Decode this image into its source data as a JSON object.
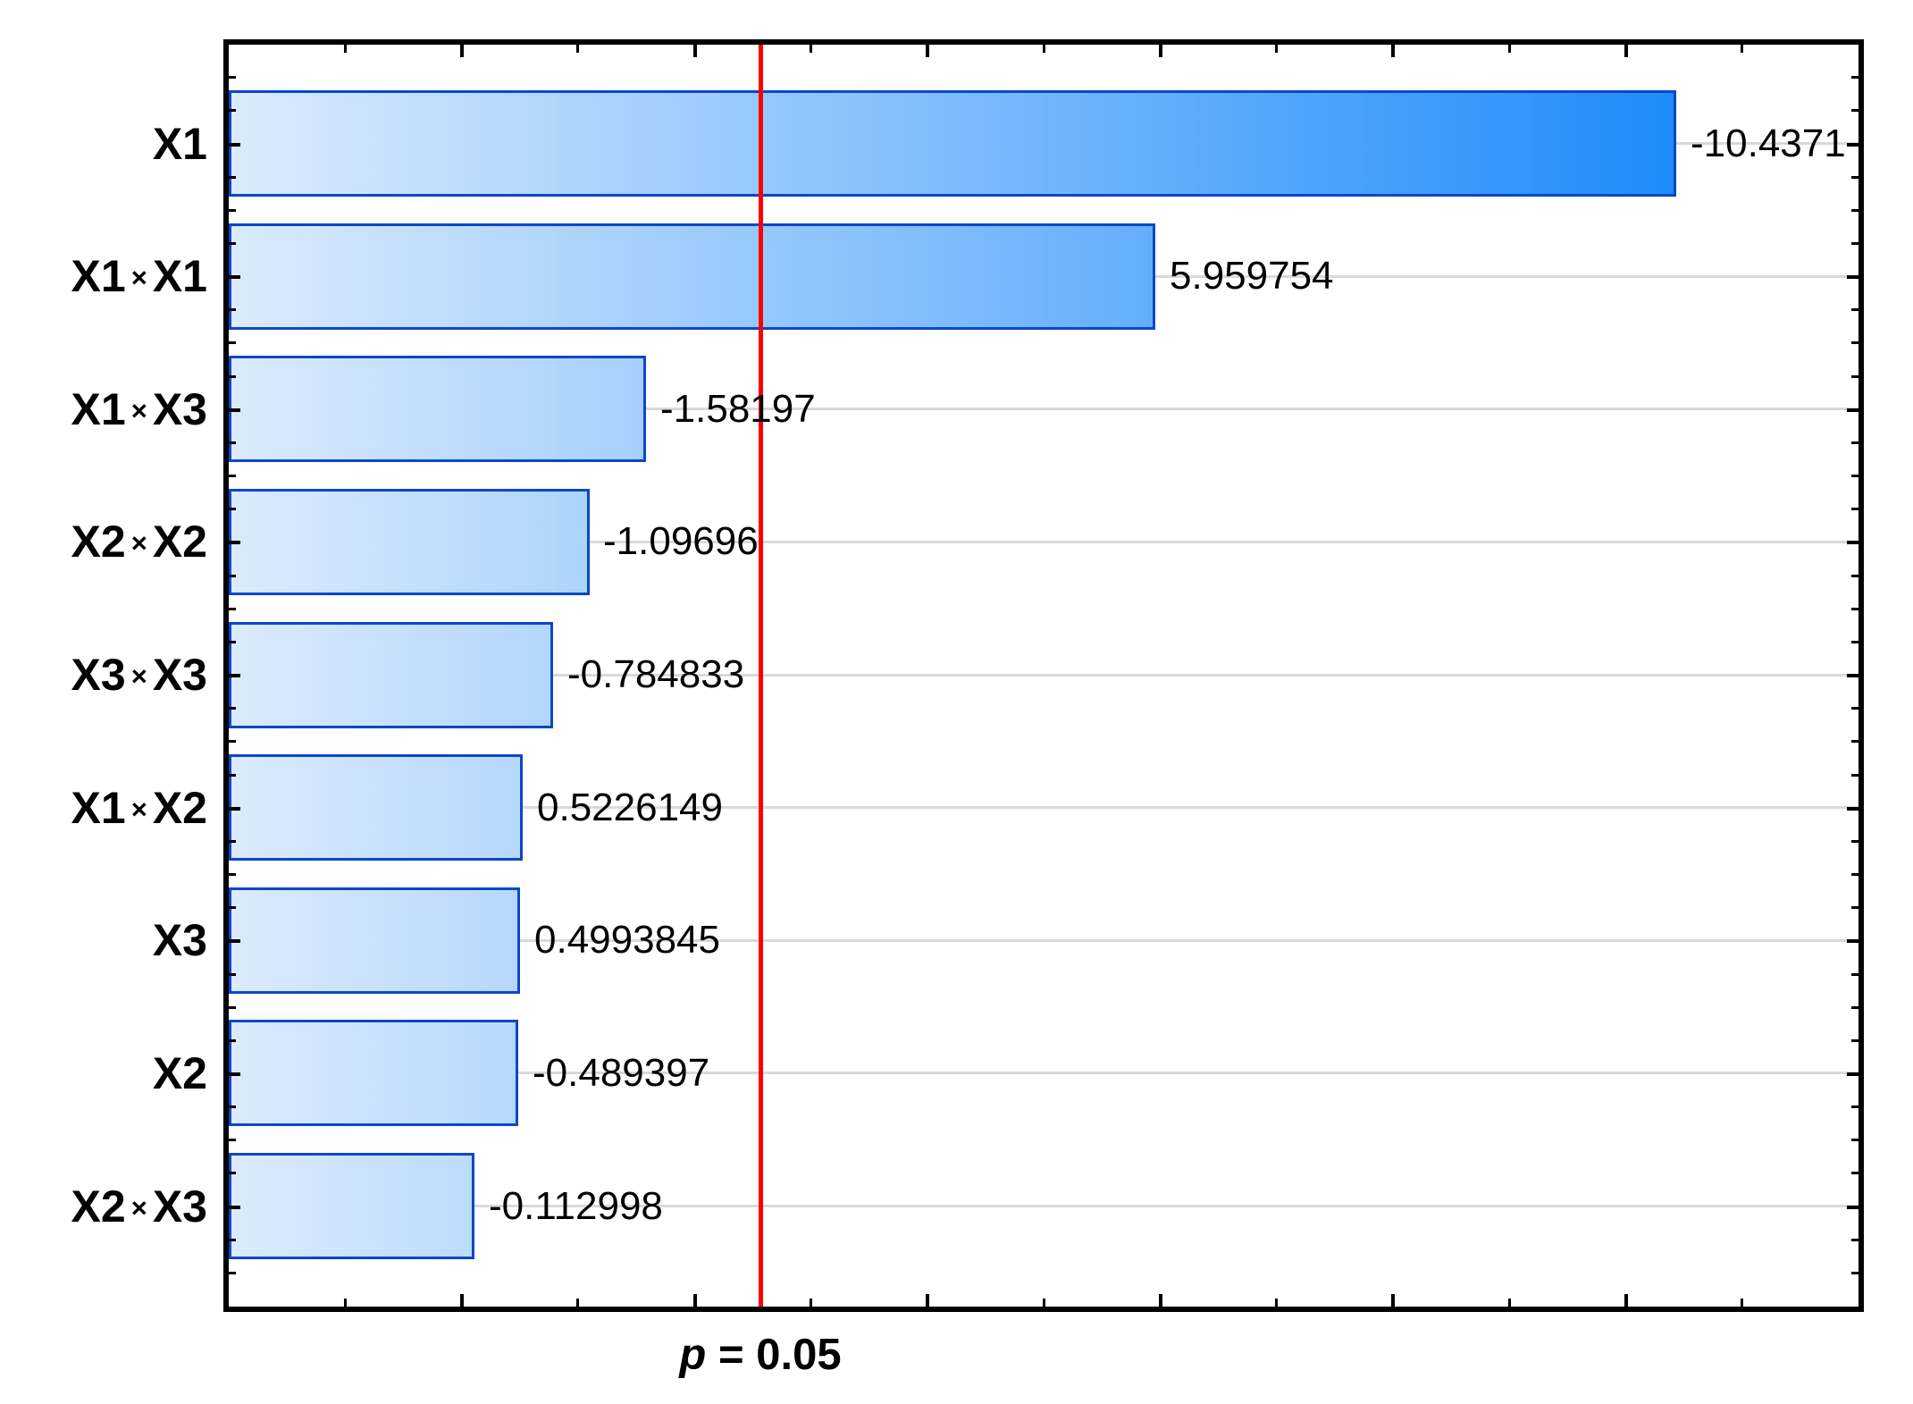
{
  "chart_data": {
    "type": "bar",
    "orientation": "horizontal",
    "subtype": "pareto-of-standardized-effects",
    "title": "",
    "xlabel": "",
    "ylabel": "",
    "legend": "none",
    "categories": [
      "X1",
      "X1 × X1",
      "X1 × X3",
      "X2 × X2",
      "X3 × X3",
      "X1 × X2",
      "X3",
      "X2",
      "X2 × X3"
    ],
    "values": [
      -10.4371,
      5.959754,
      -1.58197,
      -1.09696,
      -0.784833,
      0.5226149,
      0.4993845,
      -0.489397,
      -0.112998
    ],
    "value_labels": [
      "-10.4371",
      "5.959754",
      "-1.58197",
      "-1.09696",
      "-0.784833",
      "0.5226149",
      "0.4993845",
      "-0.489397",
      "-0.112998"
    ],
    "bars_show": "absolute value of effect, drawn from axis minimum",
    "xlim": [
      -2,
      12
    ],
    "x_minor_tick_interval": 1,
    "x_major_tick_interval": 2,
    "y_minor_ticks_per_category": 4,
    "grid": "horizontal lines at category centers",
    "reference_line": {
      "value": 2.571,
      "label_symbol": "p",
      "label_rest": " = 0.05",
      "color": "#ff0000"
    }
  },
  "colors": {
    "background": "#ffffff",
    "axis": "#000000",
    "gridline": "#d9d9d9",
    "bar_gradient_start": "#dcebfd",
    "bar_gradient_end": "#1e8cfa",
    "bar_border": "#0c47c8",
    "reference_line": "#ff0000",
    "text": "#000000"
  }
}
